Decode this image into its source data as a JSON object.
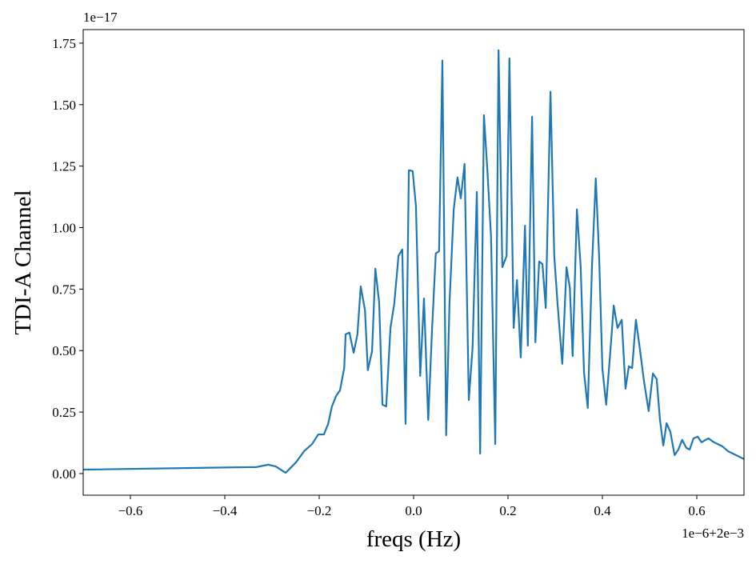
{
  "chart_data": {
    "type": "line",
    "xlabel": "freqs (Hz)",
    "ylabel": "TDI-A Channel",
    "x_offset_label": "1e−6+2e−3",
    "y_offset_label": "1e−17",
    "xlim": [
      -0.7,
      0.7
    ],
    "ylim": [
      -0.088,
      1.805
    ],
    "xticks": [
      {
        "value": -0.6,
        "label": "−0.6"
      },
      {
        "value": -0.4,
        "label": "−0.4"
      },
      {
        "value": -0.2,
        "label": "−0.2"
      },
      {
        "value": 0,
        "label": "0.0"
      },
      {
        "value": 0.2,
        "label": "0.2"
      },
      {
        "value": 0.4,
        "label": "0.4"
      },
      {
        "value": 0.6,
        "label": "0.6"
      }
    ],
    "yticks": [
      {
        "value": 0,
        "label": "0.00"
      },
      {
        "value": 0.25,
        "label": "0.25"
      },
      {
        "value": 0.5,
        "label": "0.50"
      },
      {
        "value": 0.75,
        "label": "0.75"
      },
      {
        "value": 1,
        "label": "1.00"
      },
      {
        "value": 1.25,
        "label": "1.25"
      },
      {
        "value": 1.5,
        "label": "1.50"
      },
      {
        "value": 1.75,
        "label": "1.75"
      }
    ],
    "grid": false,
    "x": [
      -0.7,
      -0.351,
      -0.334,
      -0.308,
      -0.292,
      -0.271,
      -0.249,
      -0.232,
      -0.215,
      -0.202,
      -0.19,
      -0.181,
      -0.173,
      -0.164,
      -0.156,
      -0.147,
      -0.144,
      -0.136,
      -0.127,
      -0.119,
      -0.112,
      -0.103,
      -0.097,
      -0.088,
      -0.081,
      -0.073,
      -0.066,
      -0.058,
      -0.049,
      -0.041,
      -0.032,
      -0.024,
      -0.017,
      -0.01,
      -0.002,
      0.005,
      0.014,
      0.022,
      0.031,
      0.039,
      0.047,
      0.054,
      0.061,
      0.069,
      0.076,
      0.085,
      0.093,
      0.1,
      0.108,
      0.117,
      0.125,
      0.134,
      0.141,
      0.149,
      0.156,
      0.164,
      0.173,
      0.18,
      0.188,
      0.197,
      0.203,
      0.212,
      0.219,
      0.227,
      0.236,
      0.242,
      0.251,
      0.258,
      0.266,
      0.273,
      0.28,
      0.29,
      0.298,
      0.305,
      0.315,
      0.324,
      0.331,
      0.337,
      0.346,
      0.354,
      0.361,
      0.369,
      0.378,
      0.386,
      0.393,
      0.4,
      0.408,
      0.417,
      0.424,
      0.432,
      0.441,
      0.449,
      0.456,
      0.463,
      0.471,
      0.478,
      0.488,
      0.498,
      0.507,
      0.515,
      0.522,
      0.529,
      0.536,
      0.544,
      0.553,
      0.561,
      0.569,
      0.578,
      0.585,
      0.593,
      0.602,
      0.61,
      0.619,
      0.625,
      0.634,
      0.644,
      0.654,
      0.666,
      0.683,
      0.7
    ],
    "series": [
      {
        "name": "TDI-A",
        "color": "#1f77b4",
        "values": [
          0.016,
          0.026,
          0.026,
          0.036,
          0.029,
          0.003,
          0.046,
          0.091,
          0.12,
          0.159,
          0.159,
          0.202,
          0.273,
          0.316,
          0.338,
          0.429,
          0.566,
          0.573,
          0.491,
          0.566,
          0.761,
          0.664,
          0.42,
          0.498,
          0.833,
          0.696,
          0.28,
          0.273,
          0.592,
          0.69,
          0.885,
          0.911,
          0.202,
          1.233,
          1.23,
          1.087,
          0.397,
          0.712,
          0.218,
          0.582,
          0.895,
          0.904,
          1.679,
          0.156,
          0.69,
          1.074,
          1.204,
          1.119,
          1.259,
          0.299,
          0.514,
          1.145,
          0.081,
          1.457,
          1.243,
          0.966,
          0.12,
          1.721,
          0.839,
          0.885,
          1.688,
          0.592,
          0.787,
          0.472,
          1.008,
          0.52,
          1.451,
          0.534,
          0.862,
          0.852,
          0.673,
          1.552,
          0.885,
          0.69,
          0.446,
          0.839,
          0.755,
          0.478,
          1.074,
          0.839,
          0.413,
          0.267,
          0.846,
          1.2,
          0.885,
          0.426,
          0.28,
          0.501,
          0.683,
          0.592,
          0.625,
          0.345,
          0.436,
          0.429,
          0.625,
          0.527,
          0.377,
          0.254,
          0.407,
          0.384,
          0.218,
          0.114,
          0.205,
          0.169,
          0.075,
          0.098,
          0.137,
          0.104,
          0.098,
          0.143,
          0.15,
          0.127,
          0.137,
          0.143,
          0.13,
          0.12,
          0.111,
          0.091,
          0.075,
          0.059
        ]
      }
    ]
  }
}
